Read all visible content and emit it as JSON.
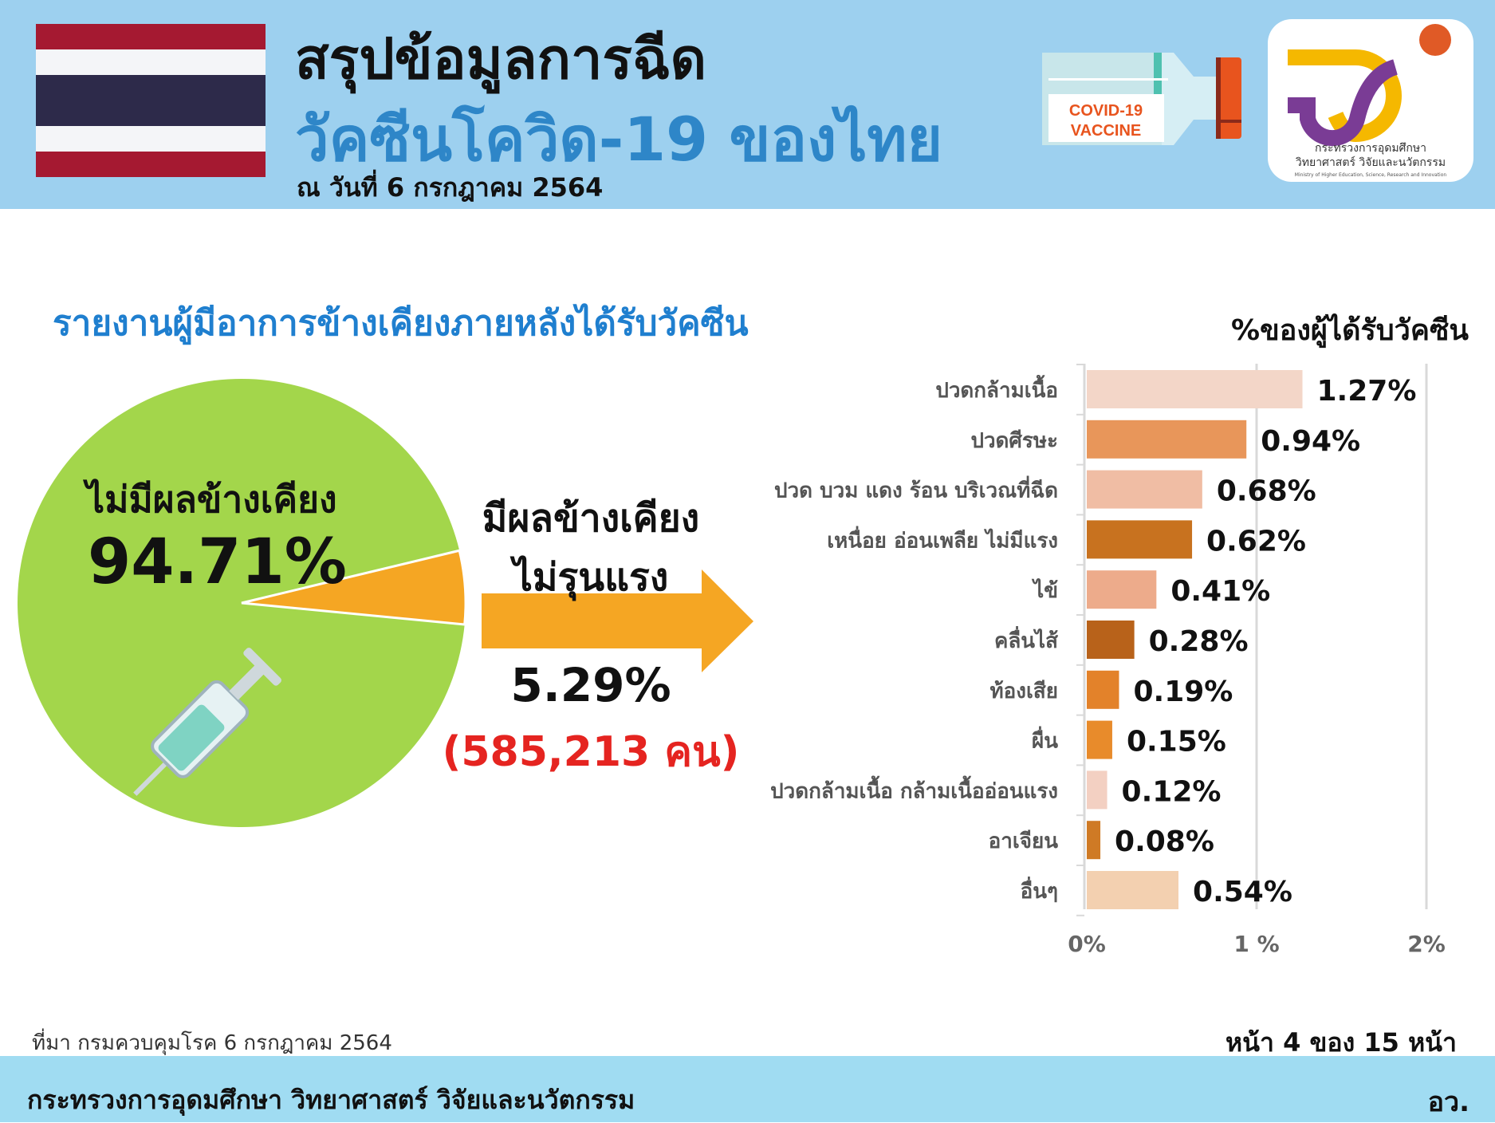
{
  "header": {
    "title_line1": "สรุปข้อมูลการฉีด",
    "title_line2": "วัคซีนโควิด-19 ของไทย",
    "date": "ณ วันที่ 6 กรกฎาคม 2564",
    "vial_label_line1": "COVID-19",
    "vial_label_line2": "VACCINE",
    "logo_text_th1": "กระทรวงการอุดมศึกษา",
    "logo_text_th2": "วิทยาศาสตร์ วิจัยและนวัตกรรม",
    "logo_text_en": "Ministry of Higher Education, Science, Research and Innovation",
    "flag_colors": [
      "#a51931",
      "#f4f5f8",
      "#2d2a4a"
    ]
  },
  "section_title": "รายงานผู้มีอาการข้างเคียงภายหลังได้รับวัคซีน",
  "pie_labels": {
    "no_effect_label": "ไม่มีผลข้างเคียง",
    "no_effect_value": "94.71%",
    "effect_label_line1": "มีผลข้างเคียง",
    "effect_label_line2": "ไม่รุนแรง",
    "effect_value": "5.29%",
    "effect_count": "(585,213 คน)"
  },
  "chart_data": [
    {
      "type": "pie",
      "categories": [
        "ไม่มีผลข้างเคียง",
        "มีผลข้างเคียง ไม่รุนแรง"
      ],
      "values": [
        94.71,
        5.29
      ],
      "colors": [
        "#a3d64b",
        "#f5a623"
      ]
    },
    {
      "type": "bar",
      "orientation": "horizontal",
      "title": "%ของผู้ได้รับวัคซีน",
      "categories": [
        "ปวดกล้ามเนื้อ",
        "ปวดศีรษะ",
        "ปวด บวม แดง ร้อน บริเวณที่ฉีด",
        "เหนื่อย อ่อนเพลีย ไม่มีแรง",
        "ไข้",
        "คลื่นไส้",
        "ท้องเสีย",
        "ผื่น",
        "ปวดกล้ามเนื้อ กล้ามเนื้ออ่อนแรง",
        "อาเจียน",
        "อื่นๆ"
      ],
      "values": [
        1.27,
        0.94,
        0.68,
        0.62,
        0.41,
        0.28,
        0.19,
        0.15,
        0.12,
        0.08,
        0.54
      ],
      "data_labels": [
        "1.27%",
        "0.94%",
        "0.68%",
        "0.62%",
        "0.41%",
        "0.28%",
        "0.19%",
        "0.15%",
        "0.12%",
        "0.08%",
        "0.54%"
      ],
      "colors": [
        "#f3d6c8",
        "#e8965a",
        "#f0bda4",
        "#c8721f",
        "#edab8b",
        "#b8621a",
        "#e3822a",
        "#e88b2b",
        "#f3d0c2",
        "#cf7a25",
        "#f3d0b0"
      ],
      "xlim": [
        0,
        2
      ],
      "xticks": [
        "0%",
        "1 %",
        "2%"
      ],
      "grid": true
    }
  ],
  "footer": {
    "source": "ที่มา กรมควบคุมโรค 6 กรกฎาคม 2564",
    "page": "หน้า 4 ของ 15 หน้า",
    "ministry": "กระทรวงการอุดมศึกษา วิทยาศาสตร์ วิจัยและนวัตกรรม",
    "short": "อว."
  }
}
